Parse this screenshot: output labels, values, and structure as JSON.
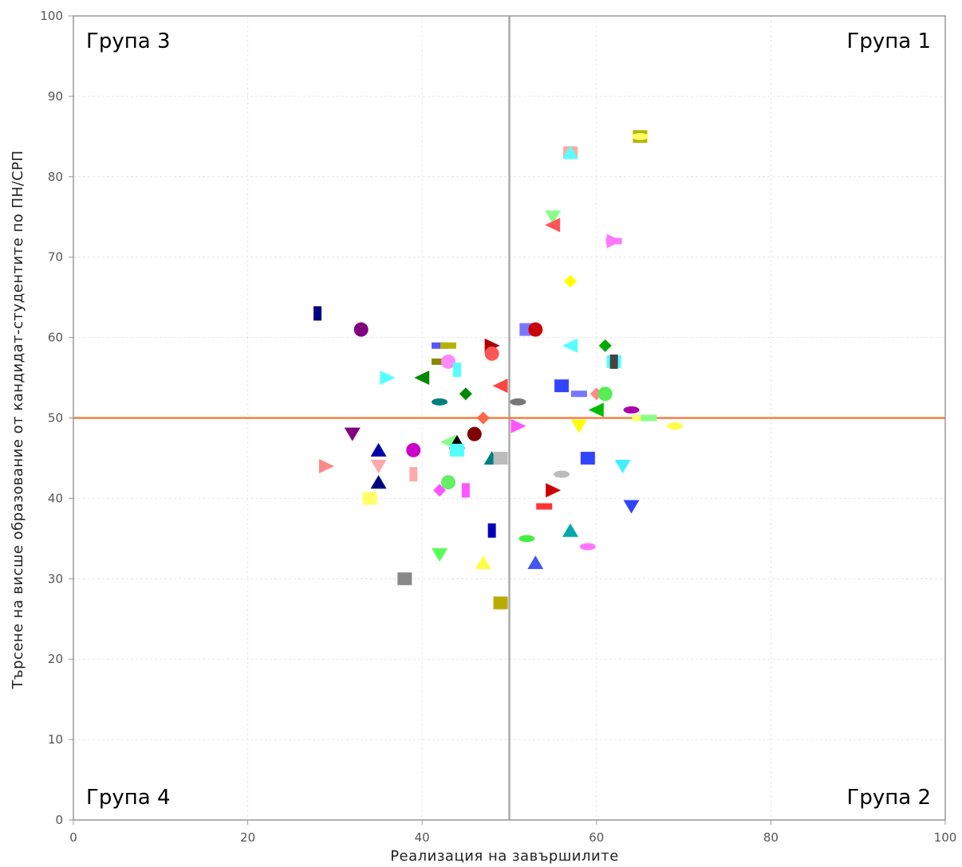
{
  "chart_data": {
    "type": "scatter",
    "title": "",
    "xlabel": "Реализация на завършилите",
    "ylabel": "Търсене на висше образование от кандидат-студентите по ПН/СРП",
    "xlim": [
      0,
      100
    ],
    "ylim": [
      0,
      100
    ],
    "x_ticks": [
      0,
      20,
      40,
      60,
      80,
      100
    ],
    "y_ticks": [
      0,
      10,
      20,
      30,
      40,
      50,
      60,
      70,
      80,
      90,
      100
    ],
    "grid": true,
    "reference_lines": {
      "vertical_x": 50,
      "vertical_color": "#aaaaaa",
      "horizontal_y": 50,
      "horizontal_color": "#f08040"
    },
    "quadrant_labels": {
      "top_left": "Група 3",
      "top_right": "Група 1",
      "bottom_left": "Група 4",
      "bottom_right": "Група 2"
    },
    "points": [
      {
        "x": 65,
        "y": 85,
        "shape": "square",
        "color": "#b5b500"
      },
      {
        "x": 65,
        "y": 85,
        "shape": "ellipse",
        "color": "#ffff66"
      },
      {
        "x": 57,
        "y": 83,
        "shape": "square",
        "color": "#ffaaaa"
      },
      {
        "x": 57,
        "y": 83,
        "shape": "triangle-up",
        "color": "#55ffff"
      },
      {
        "x": 55,
        "y": 75,
        "shape": "triangle-down",
        "color": "#88ff88"
      },
      {
        "x": 55,
        "y": 74,
        "shape": "triangle-left",
        "color": "#ff5555"
      },
      {
        "x": 62,
        "y": 72,
        "shape": "triangle-right",
        "color": "#ff77ff"
      },
      {
        "x": 62,
        "y": 72,
        "shape": "rect-h",
        "color": "#ff77ff"
      },
      {
        "x": 57,
        "y": 67,
        "shape": "diamond",
        "color": "#ffff00"
      },
      {
        "x": 28,
        "y": 63,
        "shape": "rect-v",
        "color": "#000080"
      },
      {
        "x": 33,
        "y": 61,
        "shape": "circle",
        "color": "#800080"
      },
      {
        "x": 52,
        "y": 61,
        "shape": "square",
        "color": "#7777ff"
      },
      {
        "x": 53,
        "y": 61,
        "shape": "circle",
        "color": "#cc0000"
      },
      {
        "x": 42,
        "y": 59,
        "shape": "rect-h",
        "color": "#5555ff"
      },
      {
        "x": 43,
        "y": 59,
        "shape": "rect-h",
        "color": "#b5b500"
      },
      {
        "x": 48,
        "y": 59,
        "shape": "triangle-right",
        "color": "#aa0000"
      },
      {
        "x": 48,
        "y": 58,
        "shape": "circle",
        "color": "#ff5555"
      },
      {
        "x": 57,
        "y": 59,
        "shape": "triangle-left",
        "color": "#55ffff"
      },
      {
        "x": 61,
        "y": 59,
        "shape": "diamond",
        "color": "#00aa00"
      },
      {
        "x": 42,
        "y": 57,
        "shape": "rect-h",
        "color": "#888800"
      },
      {
        "x": 43,
        "y": 57,
        "shape": "circle",
        "color": "#ff88ff"
      },
      {
        "x": 62,
        "y": 57,
        "shape": "square",
        "color": "#55ffff"
      },
      {
        "x": 62,
        "y": 57,
        "shape": "rect-v",
        "color": "#444444"
      },
      {
        "x": 44,
        "y": 56,
        "shape": "rect-v",
        "color": "#55ffff"
      },
      {
        "x": 36,
        "y": 55,
        "shape": "triangle-right",
        "color": "#55ffff"
      },
      {
        "x": 40,
        "y": 55,
        "shape": "triangle-left",
        "color": "#008800"
      },
      {
        "x": 49,
        "y": 54,
        "shape": "triangle-left",
        "color": "#ff4444"
      },
      {
        "x": 56,
        "y": 54,
        "shape": "square",
        "color": "#3344ff"
      },
      {
        "x": 45,
        "y": 53,
        "shape": "diamond",
        "color": "#008800"
      },
      {
        "x": 58,
        "y": 53,
        "shape": "rect-h",
        "color": "#7777ff"
      },
      {
        "x": 60,
        "y": 53,
        "shape": "diamond",
        "color": "#ff8888"
      },
      {
        "x": 61,
        "y": 53,
        "shape": "circle",
        "color": "#55ee55"
      },
      {
        "x": 42,
        "y": 52,
        "shape": "ellipse",
        "color": "#008080"
      },
      {
        "x": 51,
        "y": 52,
        "shape": "ellipse",
        "color": "#777777"
      },
      {
        "x": 60,
        "y": 51,
        "shape": "triangle-left",
        "color": "#00bb00"
      },
      {
        "x": 64,
        "y": 51,
        "shape": "ellipse",
        "color": "#aa00aa"
      },
      {
        "x": 47,
        "y": 50,
        "shape": "diamond",
        "color": "#ff6644"
      },
      {
        "x": 65,
        "y": 50,
        "shape": "rect-h",
        "color": "#ffff66"
      },
      {
        "x": 66,
        "y": 50,
        "shape": "rect-h",
        "color": "#88ff88"
      },
      {
        "x": 51,
        "y": 49,
        "shape": "triangle-right",
        "color": "#ff55ff"
      },
      {
        "x": 58,
        "y": 49,
        "shape": "triangle-down",
        "color": "#ffff00"
      },
      {
        "x": 69,
        "y": 49,
        "shape": "ellipse",
        "color": "#ffff44"
      },
      {
        "x": 32,
        "y": 48,
        "shape": "triangle-down",
        "color": "#800080"
      },
      {
        "x": 46,
        "y": 48,
        "shape": "circle",
        "color": "#800000"
      },
      {
        "x": 43,
        "y": 47,
        "shape": "triangle-left",
        "color": "#88ff88"
      },
      {
        "x": 44,
        "y": 47,
        "shape": "triangle-up",
        "color": "#000000"
      },
      {
        "x": 35,
        "y": 46,
        "shape": "triangle-up",
        "color": "#0000aa"
      },
      {
        "x": 39,
        "y": 46,
        "shape": "circle",
        "color": "#cc00cc"
      },
      {
        "x": 44,
        "y": 46,
        "shape": "square",
        "color": "#55ffff"
      },
      {
        "x": 48,
        "y": 45,
        "shape": "triangle-up",
        "color": "#008080"
      },
      {
        "x": 49,
        "y": 45,
        "shape": "square",
        "color": "#bbbbbb"
      },
      {
        "x": 59,
        "y": 45,
        "shape": "square",
        "color": "#3344ff"
      },
      {
        "x": 29,
        "y": 44,
        "shape": "triangle-right",
        "color": "#ff8888"
      },
      {
        "x": 35,
        "y": 44,
        "shape": "triangle-down",
        "color": "#ffaaaa"
      },
      {
        "x": 63,
        "y": 44,
        "shape": "triangle-down",
        "color": "#44eeff"
      },
      {
        "x": 39,
        "y": 43,
        "shape": "rect-v",
        "color": "#ffaaaa"
      },
      {
        "x": 56,
        "y": 43,
        "shape": "ellipse",
        "color": "#bbbbbb"
      },
      {
        "x": 35,
        "y": 42,
        "shape": "triangle-up",
        "color": "#000080"
      },
      {
        "x": 43,
        "y": 42,
        "shape": "circle",
        "color": "#66ee66"
      },
      {
        "x": 42,
        "y": 41,
        "shape": "diamond",
        "color": "#ff55ff"
      },
      {
        "x": 45,
        "y": 41,
        "shape": "rect-v",
        "color": "#ff55ff"
      },
      {
        "x": 55,
        "y": 41,
        "shape": "triangle-right",
        "color": "#cc0000"
      },
      {
        "x": 34,
        "y": 40,
        "shape": "square",
        "color": "#ffff66"
      },
      {
        "x": 54,
        "y": 39,
        "shape": "rect-h",
        "color": "#ff3333"
      },
      {
        "x": 64,
        "y": 39,
        "shape": "triangle-down",
        "color": "#3344ff"
      },
      {
        "x": 48,
        "y": 36,
        "shape": "rect-v",
        "color": "#0000bb"
      },
      {
        "x": 57,
        "y": 36,
        "shape": "triangle-up",
        "color": "#00aaaa"
      },
      {
        "x": 52,
        "y": 35,
        "shape": "ellipse",
        "color": "#44ee44"
      },
      {
        "x": 59,
        "y": 34,
        "shape": "ellipse",
        "color": "#ff77ff"
      },
      {
        "x": 42,
        "y": 33,
        "shape": "triangle-down",
        "color": "#55ff55"
      },
      {
        "x": 47,
        "y": 32,
        "shape": "triangle-up",
        "color": "#ffff44"
      },
      {
        "x": 53,
        "y": 32,
        "shape": "triangle-up",
        "color": "#4455ee"
      },
      {
        "x": 38,
        "y": 30,
        "shape": "square",
        "color": "#888888"
      },
      {
        "x": 49,
        "y": 27,
        "shape": "square",
        "color": "#bbaa00"
      }
    ]
  }
}
